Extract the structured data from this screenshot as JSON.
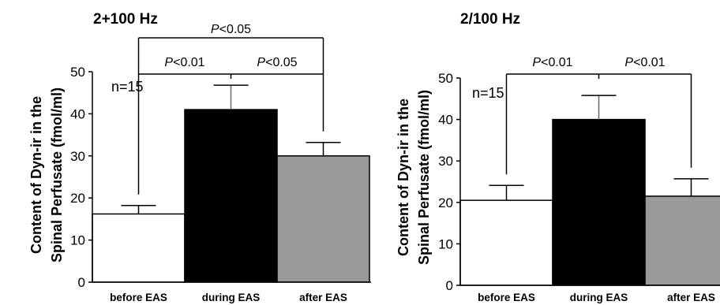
{
  "chart_data": [
    {
      "type": "bar",
      "title": "2+100 Hz",
      "ylabel_lines": [
        "Content of Dyn-ir in the",
        "Spinal Perfusate (fmol/ml)"
      ],
      "categories": [
        "before EAS",
        "during EAS",
        "after EAS"
      ],
      "values": [
        16.2,
        41.0,
        30.0
      ],
      "errors": [
        2.0,
        5.8,
        3.2
      ],
      "bar_colors": [
        "#ffffff",
        "#000000",
        "#999999"
      ],
      "ylim": [
        0,
        50
      ],
      "yticks": [
        0,
        10,
        20,
        30,
        40,
        50
      ],
      "grid": false,
      "annotation": "n=15",
      "significance": [
        {
          "from": 0,
          "to": 1,
          "p": "<0.01",
          "level": "low"
        },
        {
          "from": 1,
          "to": 2,
          "p": "<0.05",
          "level": "low"
        },
        {
          "from": 0,
          "to": 2,
          "p": "<0.05",
          "level": "high"
        }
      ]
    },
    {
      "type": "bar",
      "title": "2/100 Hz",
      "ylabel_lines": [
        "Content of Dyn-ir in the",
        "Spinal Perfusate (fmol/ml)"
      ],
      "categories": [
        "before EAS",
        "during EAS",
        "after EAS"
      ],
      "values": [
        20.5,
        40.0,
        21.5
      ],
      "errors": [
        3.6,
        5.8,
        4.2
      ],
      "bar_colors": [
        "#ffffff",
        "#000000",
        "#999999"
      ],
      "ylim": [
        0,
        50
      ],
      "yticks": [
        0,
        10,
        20,
        30,
        40,
        50
      ],
      "grid": false,
      "annotation": "n=15",
      "significance": [
        {
          "from": 0,
          "to": 1,
          "p": "<0.01",
          "level": "low"
        },
        {
          "from": 1,
          "to": 2,
          "p": "<0.01",
          "level": "low"
        }
      ]
    }
  ]
}
